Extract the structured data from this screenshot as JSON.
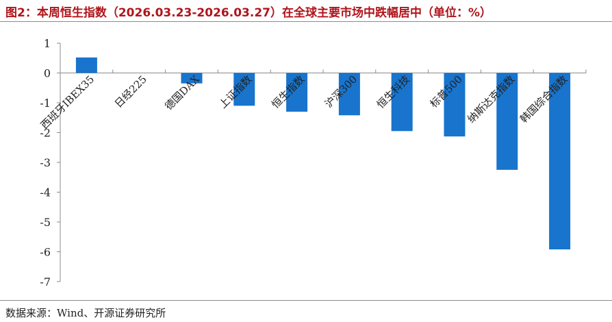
{
  "header": {
    "title": "图2：本周恒生指数（2026.03.23-2026.03.27）在全球主要市场中跌幅居中（单位：%）"
  },
  "footer": {
    "source": "数据来源：Wind、开源证券研究所"
  },
  "colors": {
    "bar": "#1874cd",
    "title": "#b0141b",
    "axis": "#8a8a8a"
  },
  "chart_data": {
    "type": "bar",
    "title": "图2：本周恒生指数（2026.03.23-2026.03.27）在全球主要市场中跌幅居中（单位：%）",
    "xlabel": "",
    "ylabel": "",
    "categories": [
      "西班牙IBEX35",
      "日经225",
      "德国DAX",
      "上证指数",
      "恒生指数",
      "沪深300",
      "恒生科技",
      "标普500",
      "纳斯达克指数",
      "韩国综合指数"
    ],
    "values": [
      0.52,
      0.0,
      -0.35,
      -1.1,
      -1.3,
      -1.42,
      -1.95,
      -2.13,
      -3.25,
      -5.92
    ],
    "ylim": [
      -7,
      1
    ],
    "yticks": [
      "1",
      "0",
      "-1",
      "-2",
      "-3",
      "-4",
      "-5",
      "-6",
      "-7"
    ],
    "grid": false,
    "legend": "none"
  }
}
